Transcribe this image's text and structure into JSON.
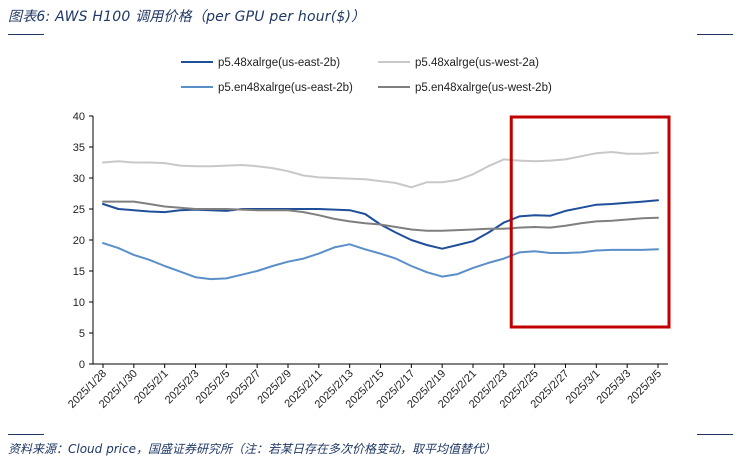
{
  "title": "图表6:  AWS H100 调用价格（per GPU per hour($)）",
  "source": "资料来源：Cloud price，国盛证券研究所（注：若某日存在多次价格变动，取平均值替代）",
  "colors": {
    "title": "#1f3864",
    "highlight_box": "#c00000"
  },
  "chart_data": {
    "type": "line",
    "x": [
      "2025/1/28",
      "2025/1/29",
      "2025/1/30",
      "2025/1/31",
      "2025/2/1",
      "2025/2/2",
      "2025/2/3",
      "2025/2/4",
      "2025/2/5",
      "2025/2/6",
      "2025/2/7",
      "2025/2/8",
      "2025/2/9",
      "2025/2/10",
      "2025/2/11",
      "2025/2/12",
      "2025/2/13",
      "2025/2/14",
      "2025/2/15",
      "2025/2/16",
      "2025/2/17",
      "2025/2/18",
      "2025/2/19",
      "2025/2/20",
      "2025/2/21",
      "2025/2/22",
      "2025/2/23",
      "2025/2/24",
      "2025/2/25",
      "2025/2/26",
      "2025/2/27",
      "2025/2/28",
      "2025/3/1",
      "2025/3/2",
      "2025/3/3",
      "2025/3/4",
      "2025/3/5"
    ],
    "x_tick_labels": [
      "2025/1/28",
      "2025/1/30",
      "2025/2/1",
      "2025/2/3",
      "2025/2/5",
      "2025/2/7",
      "2025/2/9",
      "2025/2/11",
      "2025/2/13",
      "2025/2/15",
      "2025/2/17",
      "2025/2/19",
      "2025/2/21",
      "2025/2/23",
      "2025/2/25",
      "2025/2/27",
      "2025/3/1",
      "2025/3/3",
      "2025/3/5"
    ],
    "ylim": [
      0,
      40
    ],
    "y_ticks": [
      0,
      5,
      10,
      15,
      20,
      25,
      30,
      35,
      40
    ],
    "grid": false,
    "legend_position": "top",
    "highlight_range": [
      "2025/2/24",
      "2025/3/5"
    ],
    "series": [
      {
        "name": "p5.48xalrge(us-east-2b)",
        "color": "#1f4e9a",
        "values": [
          25.8,
          25.0,
          24.8,
          24.6,
          24.5,
          24.8,
          24.9,
          24.8,
          24.7,
          25.0,
          25.0,
          25.0,
          25.0,
          25.0,
          25.0,
          24.9,
          24.8,
          24.2,
          22.5,
          21.2,
          20.0,
          19.2,
          18.6,
          19.2,
          19.8,
          21.2,
          22.8,
          23.8,
          24.0,
          23.9,
          24.7,
          25.2,
          25.7,
          25.8,
          26.0,
          26.2,
          26.4
        ]
      },
      {
        "name": "p5.48xalrge(us-west-2a)",
        "color": "#c8c8c8",
        "values": [
          32.5,
          32.7,
          32.5,
          32.5,
          32.4,
          32.0,
          31.9,
          31.9,
          32.0,
          32.1,
          31.9,
          31.6,
          31.1,
          30.4,
          30.1,
          30.0,
          29.9,
          29.8,
          29.5,
          29.2,
          28.5,
          29.3,
          29.3,
          29.7,
          30.6,
          31.9,
          33.0,
          32.8,
          32.7,
          32.8,
          33.0,
          33.5,
          34.0,
          34.2,
          33.9,
          33.9,
          34.1
        ]
      },
      {
        "name": "p5.en48xalrge(us-east-2b)",
        "color": "#5b8fc9",
        "values": [
          19.5,
          18.7,
          17.6,
          16.8,
          15.8,
          14.9,
          14.0,
          13.7,
          13.8,
          14.4,
          15.0,
          15.8,
          16.5,
          17.0,
          17.8,
          18.8,
          19.3,
          18.5,
          17.8,
          17.0,
          15.8,
          14.8,
          14.1,
          14.5,
          15.5,
          16.3,
          17.0,
          18.0,
          18.2,
          17.9,
          17.9,
          18.0,
          18.3,
          18.4,
          18.4,
          18.4,
          18.5
        ]
      },
      {
        "name": "p5.en48xalrge(us-west-2b)",
        "color": "#7f7f7f",
        "values": [
          26.2,
          26.2,
          26.2,
          25.8,
          25.4,
          25.2,
          25.0,
          25.0,
          25.0,
          24.9,
          24.8,
          24.8,
          24.8,
          24.5,
          24.0,
          23.4,
          23.0,
          22.7,
          22.5,
          22.1,
          21.7,
          21.5,
          21.5,
          21.6,
          21.7,
          21.8,
          21.8,
          22.0,
          22.1,
          22.0,
          22.3,
          22.7,
          23.0,
          23.1,
          23.3,
          23.5,
          23.6
        ]
      }
    ]
  }
}
